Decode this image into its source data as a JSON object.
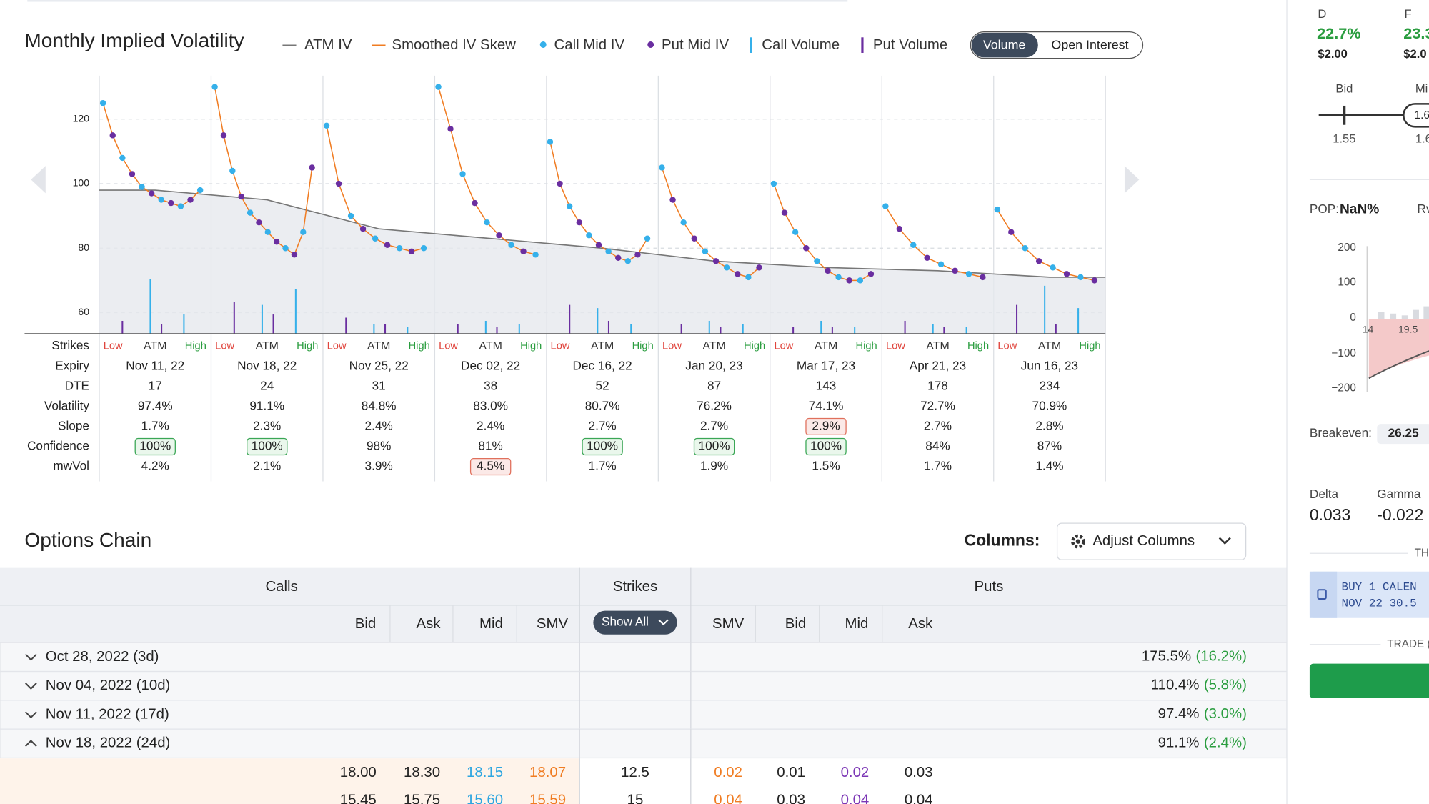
{
  "iv_chart": {
    "type": "scatter",
    "title": "Monthly Implied Volatility",
    "legend": [
      {
        "name": "ATM IV",
        "color": "#777777",
        "marker": "dash"
      },
      {
        "name": "Smoothed IV Skew",
        "color": "#f07c22",
        "marker": "dash"
      },
      {
        "name": "Call Mid IV",
        "color": "#35b0ea",
        "marker": "dot"
      },
      {
        "name": "Put Mid IV",
        "color": "#6a2ea0",
        "marker": "dot"
      },
      {
        "name": "Call Volume",
        "color": "#35b0ea",
        "marker": "bar"
      },
      {
        "name": "Put Volume",
        "color": "#6a2ea0",
        "marker": "bar"
      }
    ],
    "toggle": [
      "Volume",
      "Open Interest"
    ],
    "ylim": [
      53.5,
      133.5
    ],
    "yticks": [
      60,
      80,
      100,
      120
    ],
    "grid": true,
    "atm_iv": [
      98,
      95,
      86,
      83,
      80,
      76,
      74,
      73,
      71
    ],
    "expiries": [
      {
        "iv": [
          125,
          115,
          108,
          103,
          99,
          97,
          95,
          94,
          93,
          95,
          98
        ],
        "call_volume": [
          17,
          6
        ],
        "put_volume": [
          4,
          3
        ]
      },
      {
        "iv": [
          130,
          115,
          104,
          96,
          91,
          88,
          85,
          82,
          80,
          78,
          85,
          105
        ],
        "call_volume": [
          9,
          14
        ],
        "put_volume": [
          10,
          6
        ]
      },
      {
        "iv": [
          118,
          100,
          90,
          86,
          83,
          81,
          80,
          79,
          80
        ],
        "call_volume": [
          3,
          2
        ],
        "put_volume": [
          5,
          3
        ]
      },
      {
        "iv": [
          130,
          117,
          103,
          94,
          88,
          84,
          81,
          79,
          78
        ],
        "call_volume": [
          4,
          3
        ],
        "put_volume": [
          3,
          2
        ]
      },
      {
        "iv": [
          113,
          100,
          93,
          88,
          84,
          81,
          79,
          77,
          76,
          78,
          83
        ],
        "call_volume": [
          8,
          3
        ],
        "put_volume": [
          9,
          4
        ]
      },
      {
        "iv": [
          105,
          95,
          88,
          83,
          79,
          76,
          74,
          72,
          71,
          74
        ],
        "call_volume": [
          4,
          3
        ],
        "put_volume": [
          3,
          2
        ]
      },
      {
        "iv": [
          100,
          91,
          85,
          80,
          76,
          73,
          71,
          70,
          70,
          72
        ],
        "call_volume": [
          4,
          2
        ],
        "put_volume": [
          2,
          2
        ]
      },
      {
        "iv": [
          93,
          86,
          81,
          77,
          75,
          73,
          72,
          71
        ],
        "call_volume": [
          3,
          2
        ],
        "put_volume": [
          4,
          2
        ]
      },
      {
        "iv": [
          92,
          85,
          80,
          76,
          74,
          72,
          71,
          70
        ],
        "call_volume": [
          15,
          8
        ],
        "put_volume": [
          9,
          3
        ]
      }
    ]
  },
  "term_table": {
    "rows": [
      {
        "label": "Strikes",
        "values": [
          "Low",
          "ATM",
          "High"
        ]
      },
      {
        "label": "Expiry",
        "values": [
          "Nov 11, 22",
          "Nov 18, 22",
          "Nov 25, 22",
          "Dec 02, 22",
          "Dec 16, 22",
          "Jan 20, 23",
          "Mar 17, 23",
          "Apr 21, 23",
          "Jun 16, 23"
        ]
      },
      {
        "label": "DTE",
        "values": [
          "17",
          "24",
          "31",
          "38",
          "52",
          "87",
          "143",
          "178",
          "234"
        ]
      },
      {
        "label": "Volatility",
        "values": [
          "97.4%",
          "91.1%",
          "84.8%",
          "83.0%",
          "80.7%",
          "76.2%",
          "74.1%",
          "72.7%",
          "70.9%"
        ]
      },
      {
        "label": "Slope",
        "values": [
          "1.7%",
          "2.3%",
          "2.4%",
          "2.4%",
          "2.7%",
          "2.7%",
          "2.9%",
          "2.7%",
          "2.8%"
        ]
      },
      {
        "label": "Confidence",
        "values": [
          "100%",
          "100%",
          "98%",
          "81%",
          "100%",
          "100%",
          "100%",
          "84%",
          "87%"
        ]
      },
      {
        "label": "mwVol",
        "values": [
          "4.2%",
          "2.1%",
          "3.9%",
          "4.5%",
          "1.7%",
          "1.9%",
          "1.5%",
          "1.7%",
          "1.4%"
        ]
      }
    ],
    "highlights": [
      {
        "row": 5,
        "col": 0,
        "tone": "good"
      },
      {
        "row": 5,
        "col": 1,
        "tone": "good"
      },
      {
        "row": 5,
        "col": 4,
        "tone": "good"
      },
      {
        "row": 5,
        "col": 5,
        "tone": "good"
      },
      {
        "row": 5,
        "col": 6,
        "tone": "good"
      },
      {
        "row": 4,
        "col": 6,
        "tone": "bad"
      },
      {
        "row": 6,
        "col": 3,
        "tone": "bad"
      }
    ]
  },
  "options_chain": {
    "title": "Options Chain",
    "columns_label": "Columns:",
    "adjust_button": "Adjust Columns",
    "groups": [
      "Calls",
      "Strikes",
      "Puts"
    ],
    "call_columns": [
      "Bid",
      "Ask",
      "Mid",
      "SMV"
    ],
    "strike_filter": "Show All",
    "put_columns": [
      "SMV",
      "Bid",
      "Mid",
      "Ask"
    ],
    "expiries": [
      {
        "label": "Oct 28, 2022 (3d)",
        "iv": "175.5%",
        "slope": "(16.2%)",
        "open": false
      },
      {
        "label": "Nov 04, 2022 (10d)",
        "iv": "110.4%",
        "slope": "(5.8%)",
        "open": false
      },
      {
        "label": "Nov 11, 2022 (17d)",
        "iv": "97.4%",
        "slope": "(3.0%)",
        "open": false
      },
      {
        "label": "Nov 18, 2022 (24d)",
        "iv": "91.1%",
        "slope": "(2.4%)",
        "open": true
      }
    ],
    "rows": [
      {
        "calls": [
          "18.00",
          "18.30",
          "18.15",
          "18.07"
        ],
        "strike": "12.5",
        "puts": [
          "0.02",
          "0.01",
          "0.02",
          "0.03"
        ]
      },
      {
        "calls": [
          "15.45",
          "15.75",
          "15.60",
          "15.59"
        ],
        "strike": "15",
        "puts": [
          "0.04",
          "0.03",
          "0.04",
          "0.04"
        ]
      }
    ]
  },
  "side_panel": {
    "d_label": "D",
    "d_value": "22.7%",
    "d_price": "$2.00",
    "f_label": "F",
    "f_value": "23.3",
    "f_price": "$2.0",
    "bid_label": "Bid",
    "mid_label": "Mi",
    "bid_value": "1.55",
    "mid_value": "1.6",
    "knob_value": "1.6",
    "pop_label": "POP:",
    "pop_value": "NaN%",
    "rv_label": "Rv",
    "pl_ticks": [
      "200",
      "100",
      "0",
      "−100",
      "−200"
    ],
    "pl_x": [
      "14",
      "19.5"
    ],
    "breakeven_label": "Breakeven:",
    "breakeven_value": "26.25",
    "delta_label": "Delta",
    "delta_value": "0.033",
    "gamma_label": "Gamma",
    "gamma_value": "-0.022",
    "th_label": "TH",
    "order_line1": "BUY 1 CALEN",
    "order_line2": "NOV 22 30.5",
    "trade_label": "TRADE ("
  }
}
